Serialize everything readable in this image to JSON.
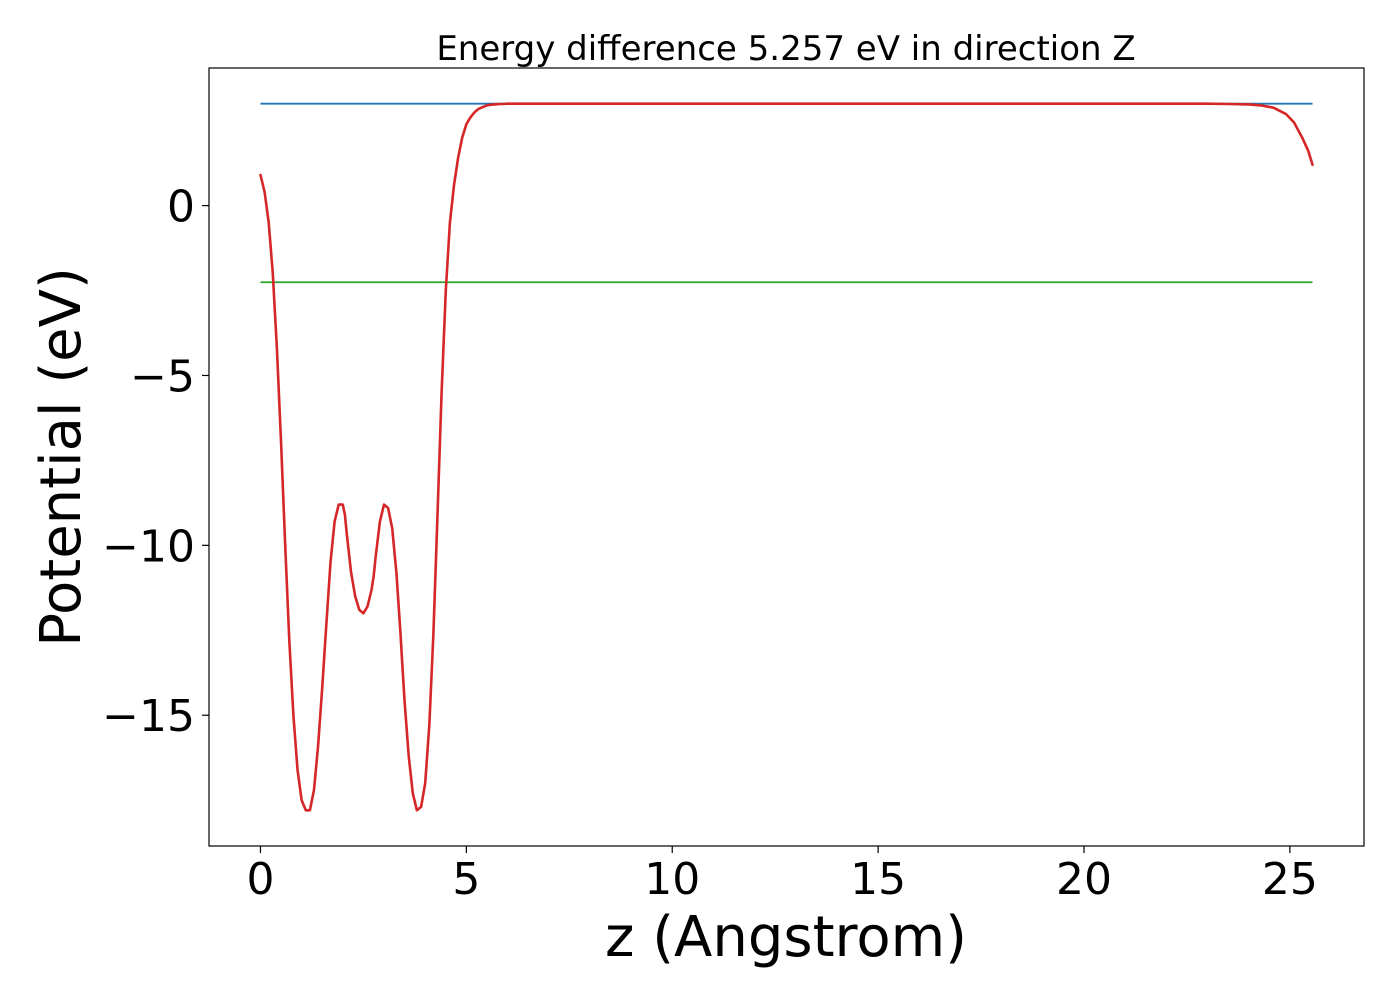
{
  "chart_data": {
    "type": "line",
    "title": "Energy difference 5.257 eV in direction Z",
    "xlabel": "z (Angstrom)",
    "ylabel": "Potential (eV)",
    "xlim": [
      -1.25,
      26.8
    ],
    "ylim": [
      -18.85,
      4.05
    ],
    "xticks": [
      0,
      5,
      10,
      15,
      20,
      25
    ],
    "yticks": [
      0,
      -5,
      -10,
      -15
    ],
    "xtick_labels": [
      "0",
      "5",
      "10",
      "15",
      "20",
      "25"
    ],
    "ytick_labels": [
      "0",
      "−5",
      "−10",
      "−15"
    ],
    "grid": false,
    "colors": {
      "potential": "#d62728",
      "vacuum_level": "#1f77b4",
      "fermi_level": "#2ca02c"
    },
    "series": [
      {
        "kind": "hline",
        "y": 3.0,
        "x": [
          0,
          25.55
        ]
      },
      {
        "kind": "hline",
        "y": -2.257,
        "x": [
          0,
          25.55
        ]
      },
      {
        "kind": "curve",
        "x": [
          0.0,
          0.1,
          0.2,
          0.3,
          0.4,
          0.5,
          0.6,
          0.7,
          0.8,
          0.9,
          1.0,
          1.1,
          1.2,
          1.3,
          1.4,
          1.5,
          1.6,
          1.7,
          1.8,
          1.9,
          2.0,
          2.05,
          2.1,
          2.2,
          2.3,
          2.4,
          2.5,
          2.6,
          2.7,
          2.75,
          2.8,
          2.9,
          3.0,
          3.1,
          3.2,
          3.3,
          3.4,
          3.45,
          3.5,
          3.6,
          3.7,
          3.8,
          3.9,
          4.0,
          4.1,
          4.2,
          4.3,
          4.4,
          4.5,
          4.6,
          4.7,
          4.8,
          4.9,
          5.0,
          5.1,
          5.2,
          5.3,
          5.4,
          5.5,
          5.6,
          5.7,
          5.8,
          5.9,
          6.0,
          6.2,
          6.4,
          6.6,
          6.8,
          7.0,
          7.5,
          8.0,
          9.0,
          10.0,
          12.0,
          14.0,
          16.0,
          18.0,
          20.0,
          22.0,
          23.0,
          23.5,
          24.0,
          24.3,
          24.6,
          24.9,
          25.1,
          25.3,
          25.45,
          25.55
        ],
        "y": [
          0.9,
          0.4,
          -0.5,
          -2.0,
          -4.2,
          -7.0,
          -10.0,
          -12.8,
          -15.0,
          -16.6,
          -17.5,
          -17.8,
          -17.8,
          -17.2,
          -15.9,
          -14.2,
          -12.3,
          -10.5,
          -9.3,
          -8.8,
          -8.8,
          -9.1,
          -9.7,
          -10.8,
          -11.5,
          -11.9,
          -12.0,
          -11.8,
          -11.3,
          -10.9,
          -10.3,
          -9.3,
          -8.8,
          -8.9,
          -9.5,
          -10.8,
          -12.6,
          -13.6,
          -14.6,
          -16.2,
          -17.3,
          -17.8,
          -17.7,
          -17.0,
          -15.3,
          -12.6,
          -9.1,
          -5.5,
          -2.5,
          -0.5,
          0.6,
          1.4,
          2.0,
          2.4,
          2.6,
          2.75,
          2.85,
          2.9,
          2.95,
          2.97,
          2.98,
          2.99,
          2.99,
          3.0,
          3.0,
          3.0,
          3.0,
          3.0,
          3.0,
          3.0,
          3.0,
          3.0,
          3.0,
          3.0,
          3.0,
          3.0,
          3.0,
          3.0,
          3.0,
          3.0,
          2.99,
          2.98,
          2.95,
          2.88,
          2.7,
          2.45,
          2.0,
          1.6,
          1.2
        ]
      }
    ]
  }
}
